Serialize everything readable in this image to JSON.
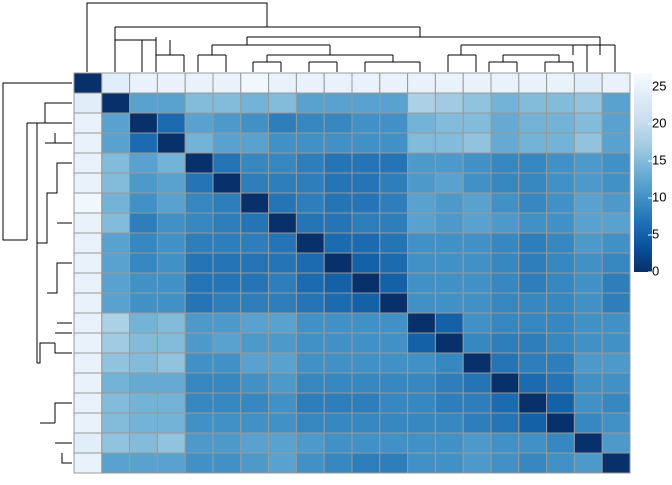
{
  "chart_data": {
    "type": "heatmap",
    "values": [
      [
        0,
        24,
        25,
        25,
        25,
        25,
        26,
        25,
        25,
        25,
        25,
        25,
        25,
        25,
        25,
        25,
        25,
        25,
        24,
        25
      ],
      [
        24,
        0,
        12,
        12,
        15,
        15,
        14,
        15,
        12,
        12,
        12,
        12,
        18,
        17,
        16,
        14,
        15,
        15,
        16,
        12
      ],
      [
        25,
        12,
        0,
        6,
        12,
        11,
        10,
        8,
        9,
        9,
        10,
        10,
        14,
        15,
        15,
        13,
        14,
        14,
        15,
        12
      ],
      [
        25,
        12,
        6,
        0,
        14,
        12,
        12,
        10,
        10,
        10,
        10,
        10,
        15,
        15,
        16,
        13,
        14,
        14,
        16,
        12
      ],
      [
        25,
        15,
        12,
        14,
        0,
        7,
        9,
        9,
        8,
        7,
        7,
        7,
        11,
        11,
        10,
        9,
        9,
        10,
        11,
        10
      ],
      [
        25,
        15,
        11,
        12,
        7,
        0,
        8,
        8,
        8,
        7,
        7,
        8,
        11,
        12,
        10,
        9,
        9,
        10,
        11,
        10
      ],
      [
        26,
        14,
        10,
        12,
        9,
        8,
        0,
        7,
        8,
        7,
        7,
        8,
        12,
        11,
        12,
        10,
        9,
        10,
        12,
        11
      ],
      [
        25,
        15,
        8,
        10,
        9,
        8,
        7,
        0,
        7,
        7,
        8,
        8,
        12,
        11,
        12,
        11,
        10,
        10,
        12,
        12
      ],
      [
        25,
        12,
        9,
        10,
        8,
        8,
        8,
        7,
        0,
        6,
        6,
        7,
        10,
        10,
        10,
        9,
        8,
        9,
        11,
        10
      ],
      [
        25,
        12,
        9,
        10,
        7,
        7,
        7,
        7,
        6,
        0,
        5,
        6,
        10,
        10,
        10,
        9,
        8,
        9,
        10,
        9
      ],
      [
        25,
        12,
        10,
        10,
        7,
        7,
        7,
        8,
        6,
        5,
        0,
        5,
        10,
        10,
        10,
        9,
        8,
        9,
        10,
        8
      ],
      [
        25,
        12,
        10,
        10,
        7,
        8,
        8,
        8,
        7,
        6,
        5,
        0,
        10,
        10,
        10,
        9,
        9,
        9,
        10,
        8
      ],
      [
        25,
        18,
        14,
        15,
        11,
        11,
        12,
        12,
        10,
        10,
        10,
        10,
        0,
        5,
        10,
        9,
        9,
        9,
        10,
        10
      ],
      [
        25,
        17,
        15,
        15,
        11,
        12,
        11,
        11,
        10,
        10,
        10,
        10,
        5,
        0,
        9,
        8,
        8,
        9,
        10,
        10
      ],
      [
        25,
        16,
        15,
        16,
        10,
        10,
        12,
        12,
        10,
        10,
        10,
        10,
        10,
        9,
        0,
        7,
        8,
        8,
        11,
        11
      ],
      [
        25,
        14,
        13,
        13,
        9,
        9,
        10,
        11,
        9,
        9,
        9,
        9,
        9,
        8,
        7,
        0,
        6,
        7,
        10,
        10
      ],
      [
        25,
        15,
        14,
        14,
        9,
        9,
        9,
        10,
        8,
        8,
        8,
        9,
        9,
        8,
        8,
        6,
        0,
        5,
        10,
        9
      ],
      [
        25,
        15,
        14,
        14,
        10,
        10,
        10,
        10,
        9,
        9,
        9,
        9,
        9,
        9,
        8,
        7,
        5,
        0,
        9,
        10
      ],
      [
        24,
        16,
        15,
        16,
        11,
        11,
        12,
        12,
        11,
        10,
        10,
        10,
        10,
        10,
        11,
        10,
        10,
        9,
        0,
        11
      ],
      [
        25,
        12,
        12,
        12,
        10,
        10,
        11,
        12,
        10,
        9,
        8,
        8,
        10,
        10,
        11,
        10,
        9,
        10,
        11,
        0
      ]
    ],
    "zlim": [
      0,
      26.9
    ],
    "zticks": [
      0,
      5,
      10,
      15,
      20,
      25
    ],
    "colors": [
      "#08306B",
      "#08519C",
      "#2171B5",
      "#4292C6",
      "#6BAED6",
      "#9ECAE1",
      "#C6DBEF",
      "#DEEBF7",
      "#F7FBFF"
    ]
  }
}
